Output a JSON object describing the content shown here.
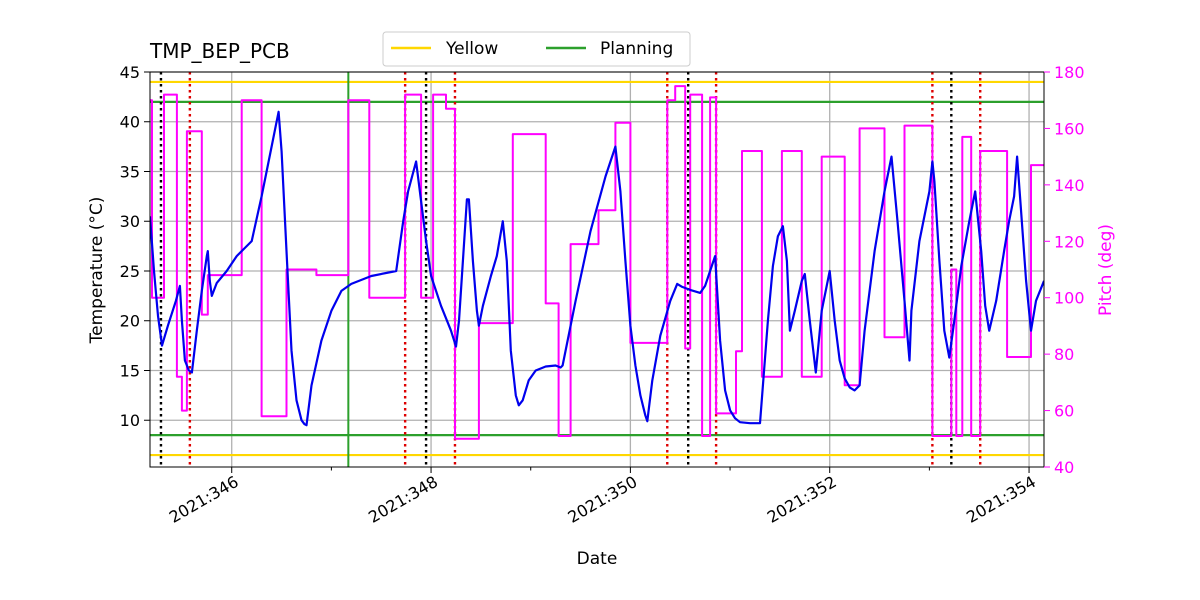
{
  "chart_data": {
    "type": "line",
    "title": "TMP_BEP_PCB",
    "xlabel": "Date",
    "ylabel": "Temperature ($^\\circ$C)",
    "ylabel_display": "Temperature (°C)",
    "ylabel_right": "Pitch (deg)",
    "xlim": [
      345.18,
      354.15
    ],
    "ylim": [
      5.3,
      45.0
    ],
    "ylim_right": [
      40,
      180
    ],
    "x_ticks": [
      {
        "value": 346,
        "label": "2021:346"
      },
      {
        "value": 348,
        "label": "2021:348"
      },
      {
        "value": 350,
        "label": "2021:350"
      },
      {
        "value": 352,
        "label": "2021:352"
      },
      {
        "value": 354,
        "label": "2021:354"
      }
    ],
    "x_minor_ticks": [
      347,
      349,
      351,
      353
    ],
    "y_ticks": [
      10,
      15,
      20,
      25,
      30,
      35,
      40,
      45
    ],
    "y_ticks_right": [
      40,
      60,
      80,
      100,
      120,
      140,
      160,
      180
    ],
    "grid": true,
    "legend": {
      "placement": "top-center",
      "entries": [
        {
          "name": "Yellow",
          "color": "#ffd700"
        },
        {
          "name": "Planning",
          "color": "#2ca02c"
        }
      ]
    },
    "colors": {
      "temperature": "#0000ee",
      "pitch": "#ff00ff",
      "yellow": "#ffd700",
      "planning": "#2ca02c",
      "black_marker": "#000000",
      "red_marker": "#dd0000",
      "grid": "#b0b0b0"
    },
    "hlines": [
      {
        "series": "Yellow",
        "y": 44.0
      },
      {
        "series": "Yellow",
        "y": 6.5
      },
      {
        "series": "Planning",
        "y": 42.0
      },
      {
        "series": "Planning",
        "y": 8.5
      }
    ],
    "vline_solid": [
      347.17
    ],
    "vlines_black_dotted": [
      345.29,
      347.95,
      350.58,
      353.22
    ],
    "vlines_red_dotted": [
      345.58,
      347.74,
      348.24,
      350.37,
      350.86,
      353.03,
      353.51
    ],
    "temperature_series": [
      [
        345.18,
        30.5
      ],
      [
        345.22,
        25.0
      ],
      [
        345.26,
        20.5
      ],
      [
        345.3,
        17.5
      ],
      [
        345.36,
        19.5
      ],
      [
        345.44,
        22.0
      ],
      [
        345.48,
        23.5
      ],
      [
        345.5,
        20.0
      ],
      [
        345.53,
        16.0
      ],
      [
        345.57,
        15.0
      ],
      [
        345.6,
        14.8
      ],
      [
        345.65,
        19.0
      ],
      [
        345.7,
        23.0
      ],
      [
        345.75,
        26.5
      ],
      [
        345.76,
        27.0
      ],
      [
        345.78,
        24.0
      ],
      [
        345.8,
        22.5
      ],
      [
        345.85,
        23.8
      ],
      [
        345.95,
        25.0
      ],
      [
        346.05,
        26.5
      ],
      [
        346.15,
        27.5
      ],
      [
        346.2,
        28.0
      ],
      [
        346.3,
        32.5
      ],
      [
        346.4,
        37.5
      ],
      [
        346.45,
        40.0
      ],
      [
        346.47,
        41.0
      ],
      [
        346.5,
        37.0
      ],
      [
        346.55,
        27.0
      ],
      [
        346.6,
        17.0
      ],
      [
        346.65,
        12.0
      ],
      [
        346.7,
        10.0
      ],
      [
        346.73,
        9.6
      ],
      [
        346.75,
        9.5
      ],
      [
        346.8,
        13.5
      ],
      [
        346.9,
        18.0
      ],
      [
        347.0,
        21.0
      ],
      [
        347.1,
        23.0
      ],
      [
        347.2,
        23.7
      ],
      [
        347.4,
        24.5
      ],
      [
        347.6,
        24.9
      ],
      [
        347.65,
        25.0
      ],
      [
        347.72,
        30.0
      ],
      [
        347.77,
        33.0
      ],
      [
        347.85,
        36.0
      ],
      [
        347.9,
        32.0
      ],
      [
        347.95,
        28.0
      ],
      [
        348.0,
        24.5
      ],
      [
        348.1,
        21.5
      ],
      [
        348.2,
        19.0
      ],
      [
        348.25,
        17.4
      ],
      [
        348.28,
        20.0
      ],
      [
        348.32,
        26.0
      ],
      [
        348.36,
        32.2
      ],
      [
        348.38,
        32.2
      ],
      [
        348.42,
        26.0
      ],
      [
        348.46,
        21.0
      ],
      [
        348.48,
        19.5
      ],
      [
        348.52,
        21.5
      ],
      [
        348.6,
        24.5
      ],
      [
        348.66,
        26.5
      ],
      [
        348.72,
        30.0
      ],
      [
        348.76,
        26.0
      ],
      [
        348.8,
        17.0
      ],
      [
        348.85,
        12.5
      ],
      [
        348.88,
        11.5
      ],
      [
        348.92,
        12.0
      ],
      [
        348.98,
        14.0
      ],
      [
        349.05,
        15.0
      ],
      [
        349.15,
        15.4
      ],
      [
        349.25,
        15.5
      ],
      [
        349.3,
        15.3
      ],
      [
        349.32,
        15.5
      ],
      [
        349.45,
        22.0
      ],
      [
        349.6,
        29.0
      ],
      [
        349.75,
        34.5
      ],
      [
        349.85,
        37.5
      ],
      [
        349.9,
        33.0
      ],
      [
        349.95,
        26.0
      ],
      [
        350.0,
        19.5
      ],
      [
        350.05,
        15.5
      ],
      [
        350.1,
        12.5
      ],
      [
        350.15,
        10.5
      ],
      [
        350.17,
        9.9
      ],
      [
        350.22,
        14.0
      ],
      [
        350.3,
        18.5
      ],
      [
        350.4,
        22.0
      ],
      [
        350.47,
        23.7
      ],
      [
        350.52,
        23.4
      ],
      [
        350.6,
        23.1
      ],
      [
        350.7,
        22.8
      ],
      [
        350.75,
        23.5
      ],
      [
        350.85,
        26.5
      ],
      [
        350.9,
        18.0
      ],
      [
        350.95,
        13.0
      ],
      [
        351.0,
        11.0
      ],
      [
        351.05,
        10.2
      ],
      [
        351.1,
        9.8
      ],
      [
        351.2,
        9.7
      ],
      [
        351.3,
        9.7
      ],
      [
        351.38,
        20.0
      ],
      [
        351.43,
        25.5
      ],
      [
        351.48,
        28.5
      ],
      [
        351.53,
        29.5
      ],
      [
        351.57,
        26.0
      ],
      [
        351.6,
        19.0
      ],
      [
        351.65,
        21.0
      ],
      [
        351.72,
        24.0
      ],
      [
        351.75,
        24.7
      ],
      [
        351.8,
        20.0
      ],
      [
        351.86,
        14.8
      ],
      [
        351.92,
        21.0
      ],
      [
        352.0,
        25.0
      ],
      [
        352.05,
        20.0
      ],
      [
        352.1,
        16.0
      ],
      [
        352.15,
        14.2
      ],
      [
        352.2,
        13.3
      ],
      [
        352.25,
        13.0
      ],
      [
        352.3,
        13.5
      ],
      [
        352.35,
        19.0
      ],
      [
        352.45,
        27.0
      ],
      [
        352.55,
        33.0
      ],
      [
        352.62,
        36.5
      ],
      [
        352.68,
        30.0
      ],
      [
        352.75,
        22.0
      ],
      [
        352.8,
        16.0
      ],
      [
        352.82,
        21.0
      ],
      [
        352.9,
        28.0
      ],
      [
        353.0,
        33.0
      ],
      [
        353.03,
        36.0
      ],
      [
        353.05,
        34.0
      ],
      [
        353.1,
        26.0
      ],
      [
        353.15,
        19.0
      ],
      [
        353.2,
        16.3
      ],
      [
        353.25,
        20.0
      ],
      [
        353.32,
        25.5
      ],
      [
        353.4,
        30.0
      ],
      [
        353.46,
        33.0
      ],
      [
        353.52,
        27.0
      ],
      [
        353.56,
        21.5
      ],
      [
        353.6,
        19.0
      ],
      [
        353.67,
        22.0
      ],
      [
        353.75,
        27.0
      ],
      [
        353.8,
        30.0
      ],
      [
        353.85,
        32.5
      ],
      [
        353.88,
        36.5
      ],
      [
        353.92,
        31.0
      ],
      [
        353.97,
        24.0
      ],
      [
        354.02,
        19.0
      ],
      [
        354.07,
        22.0
      ],
      [
        354.15,
        24.0
      ]
    ],
    "pitch_series": [
      [
        345.18,
        170
      ],
      [
        345.2,
        170
      ],
      [
        345.2,
        100
      ],
      [
        345.32,
        100
      ],
      [
        345.32,
        172
      ],
      [
        345.45,
        172
      ],
      [
        345.45,
        72
      ],
      [
        345.5,
        72
      ],
      [
        345.5,
        60
      ],
      [
        345.55,
        60
      ],
      [
        345.55,
        159
      ],
      [
        345.7,
        159
      ],
      [
        345.7,
        94
      ],
      [
        345.76,
        94
      ],
      [
        345.76,
        108
      ],
      [
        346.1,
        108
      ],
      [
        346.1,
        170
      ],
      [
        346.3,
        170
      ],
      [
        346.3,
        58
      ],
      [
        346.55,
        58
      ],
      [
        346.55,
        110
      ],
      [
        346.85,
        110
      ],
      [
        346.85,
        108
      ],
      [
        347.17,
        108
      ],
      [
        347.17,
        170
      ],
      [
        347.38,
        170
      ],
      [
        347.38,
        100
      ],
      [
        347.74,
        100
      ],
      [
        347.74,
        172
      ],
      [
        347.9,
        172
      ],
      [
        347.9,
        100
      ],
      [
        348.02,
        100
      ],
      [
        348.02,
        172
      ],
      [
        348.15,
        172
      ],
      [
        348.15,
        167
      ],
      [
        348.24,
        167
      ],
      [
        348.24,
        50
      ],
      [
        348.48,
        50
      ],
      [
        348.48,
        91
      ],
      [
        348.82,
        91
      ],
      [
        348.82,
        158
      ],
      [
        349.15,
        158
      ],
      [
        349.15,
        98
      ],
      [
        349.28,
        98
      ],
      [
        349.28,
        51
      ],
      [
        349.4,
        51
      ],
      [
        349.4,
        119
      ],
      [
        349.68,
        119
      ],
      [
        349.68,
        131
      ],
      [
        349.85,
        131
      ],
      [
        349.85,
        162
      ],
      [
        350.0,
        162
      ],
      [
        350.0,
        84
      ],
      [
        350.37,
        84
      ],
      [
        350.37,
        170
      ],
      [
        350.45,
        170
      ],
      [
        350.45,
        175
      ],
      [
        350.55,
        175
      ],
      [
        350.55,
        82
      ],
      [
        350.6,
        82
      ],
      [
        350.6,
        172
      ],
      [
        350.72,
        172
      ],
      [
        350.72,
        51
      ],
      [
        350.8,
        51
      ],
      [
        350.8,
        171
      ],
      [
        350.86,
        171
      ],
      [
        350.86,
        59
      ],
      [
        351.06,
        59
      ],
      [
        351.06,
        81
      ],
      [
        351.12,
        81
      ],
      [
        351.12,
        152
      ],
      [
        351.32,
        152
      ],
      [
        351.32,
        72
      ],
      [
        351.52,
        72
      ],
      [
        351.52,
        152
      ],
      [
        351.72,
        152
      ],
      [
        351.72,
        72
      ],
      [
        351.92,
        72
      ],
      [
        351.92,
        150
      ],
      [
        352.15,
        150
      ],
      [
        352.15,
        69
      ],
      [
        352.3,
        69
      ],
      [
        352.3,
        160
      ],
      [
        352.55,
        160
      ],
      [
        352.55,
        86
      ],
      [
        352.75,
        86
      ],
      [
        352.75,
        161
      ],
      [
        353.03,
        161
      ],
      [
        353.03,
        51
      ],
      [
        353.22,
        51
      ],
      [
        353.22,
        110
      ],
      [
        353.27,
        110
      ],
      [
        353.27,
        51
      ],
      [
        353.33,
        51
      ],
      [
        353.33,
        157
      ],
      [
        353.42,
        157
      ],
      [
        353.42,
        51
      ],
      [
        353.51,
        51
      ],
      [
        353.51,
        152
      ],
      [
        353.78,
        152
      ],
      [
        353.78,
        79
      ],
      [
        354.02,
        79
      ],
      [
        354.02,
        147
      ],
      [
        354.15,
        147
      ]
    ]
  }
}
